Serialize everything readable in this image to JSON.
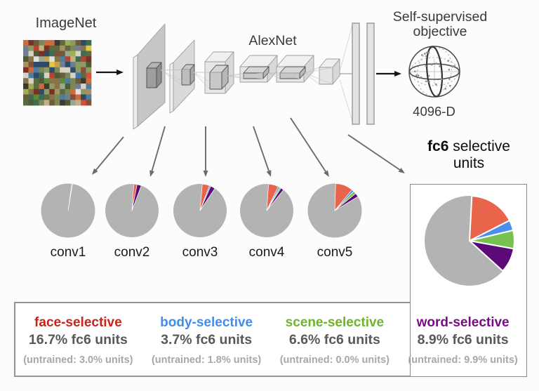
{
  "labels": {
    "imagenet": "ImageNet",
    "alexnet": "AlexNet",
    "objective_line1": "Self-supervised",
    "objective_line2": "objective",
    "dimension": "4096-D",
    "fc6_title_bold": "fc6",
    "fc6_title_rest": " selective",
    "fc6_title_line2": "units"
  },
  "colors": {
    "face": "#e8644b",
    "body": "#4a8fe8",
    "scene": "#77c24e",
    "word": "#5c0a78",
    "other": "#b3b3b3",
    "face_text": "#c9241a",
    "body_text": "#3e8df0",
    "scene_text": "#6eb42d",
    "word_text": "#780d80",
    "arrow_gray": "#6b6b6b",
    "arrow_black": "#151515",
    "mosaic_palette": [
      "#7a8757",
      "#5c6b3f",
      "#8f9a62",
      "#4e5a36",
      "#a5935f",
      "#8a7248",
      "#6d5b3e",
      "#c2b184",
      "#97a98e",
      "#3e6c50",
      "#b4432f",
      "#cf6b3a",
      "#4f7da0",
      "#2e4a66",
      "#d8d2c2",
      "#6e7f92",
      "#854f38",
      "#5b8a3c",
      "#9fae4f",
      "#3b3a2e",
      "#c7a24a",
      "#7c2f26"
    ],
    "mosaic_accents": [
      "#e0e0e0",
      "#d94f35",
      "#3f74b5",
      "#e3c93f"
    ]
  },
  "chart_data": [
    {
      "type": "pie",
      "title": "conv1",
      "slices": [
        {
          "label": "face-selective",
          "pct": 0.4
        },
        {
          "label": "other",
          "pct": 99.6
        }
      ]
    },
    {
      "type": "pie",
      "title": "conv2",
      "slices": [
        {
          "label": "face-selective",
          "pct": 2.0
        },
        {
          "label": "word-selective",
          "pct": 2.6
        },
        {
          "label": "other",
          "pct": 95.4
        }
      ]
    },
    {
      "type": "pie",
      "title": "conv3",
      "slices": [
        {
          "label": "face-selective",
          "pct": 4.4
        },
        {
          "label": "body-selective",
          "pct": 0.8
        },
        {
          "label": "word-selective",
          "pct": 2.8
        },
        {
          "label": "other",
          "pct": 92.0
        }
      ]
    },
    {
      "type": "pie",
      "title": "conv4",
      "slices": [
        {
          "label": "face-selective",
          "pct": 6.0
        },
        {
          "label": "body-selective",
          "pct": 1.0
        },
        {
          "label": "scene-selective",
          "pct": 0.9
        },
        {
          "label": "word-selective",
          "pct": 1.8
        },
        {
          "label": "other",
          "pct": 90.3
        }
      ]
    },
    {
      "type": "pie",
      "title": "conv5",
      "slices": [
        {
          "label": "face-selective",
          "pct": 10.5
        },
        {
          "label": "body-selective",
          "pct": 1.3
        },
        {
          "label": "scene-selective",
          "pct": 1.7
        },
        {
          "label": "word-selective",
          "pct": 2.3
        },
        {
          "label": "other",
          "pct": 84.2
        }
      ]
    },
    {
      "type": "pie",
      "title": "fc6",
      "slices": [
        {
          "label": "face-selective",
          "pct": 16.7
        },
        {
          "label": "body-selective",
          "pct": 3.7
        },
        {
          "label": "scene-selective",
          "pct": 6.6
        },
        {
          "label": "word-selective",
          "pct": 8.9
        },
        {
          "label": "other",
          "pct": 64.1
        }
      ]
    }
  ],
  "legend": {
    "entries": [
      {
        "name": "face-selective",
        "amount": "16.7% fc6 units",
        "untrained": "(untrained: 3.0% units)"
      },
      {
        "name": "body-selective",
        "amount": "3.7% fc6 units",
        "untrained": "(untrained: 1.8% units)"
      },
      {
        "name": "scene-selective",
        "amount": "6.6% fc6 units",
        "untrained": "(untrained: 0.0% units)"
      },
      {
        "name": "word-selective",
        "amount": "8.9% fc6 units",
        "untrained": "(untrained: 9.9% units)"
      }
    ]
  }
}
